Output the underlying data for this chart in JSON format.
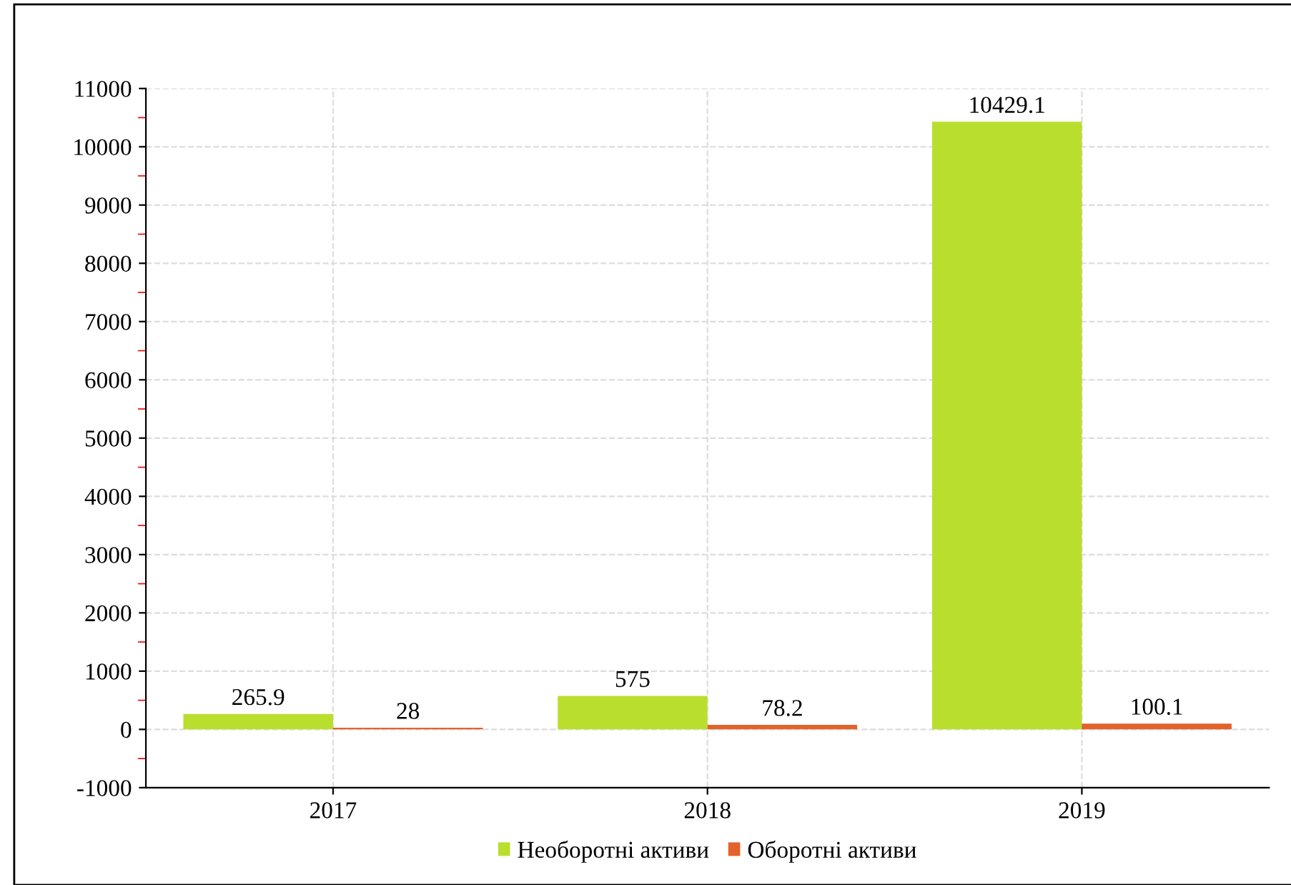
{
  "chart_data": {
    "type": "bar",
    "categories": [
      "2017",
      "2018",
      "2019"
    ],
    "series": [
      {
        "name": "Необоротні активи",
        "color": "#bade2e",
        "values": [
          265.9,
          575,
          10429.1
        ]
      },
      {
        "name": "Оборотні активи",
        "color": "#e2622b",
        "values": [
          28,
          78.2,
          100.1
        ]
      }
    ],
    "ylim": [
      -1000,
      11000
    ],
    "yticks": [
      -1000,
      0,
      1000,
      2000,
      3000,
      4000,
      5000,
      6000,
      7000,
      8000,
      9000,
      10000,
      11000
    ],
    "grid": true,
    "legend": "bottom",
    "data_labels": true
  }
}
